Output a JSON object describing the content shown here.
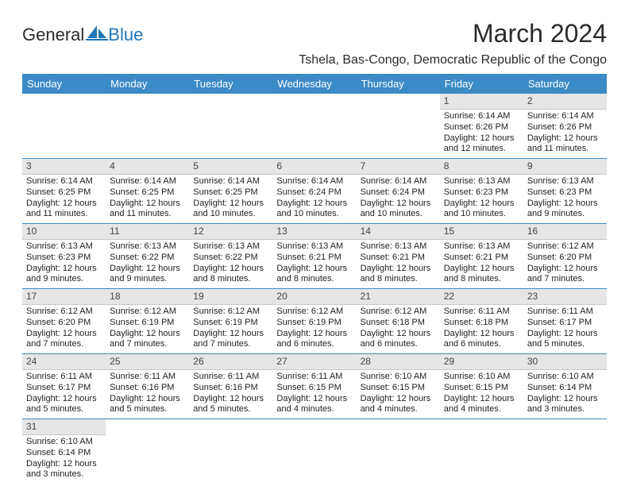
{
  "brand": {
    "name1": "General",
    "name2": "Blue"
  },
  "title": "March 2024",
  "location": "Tshela, Bas-Congo, Democratic Republic of the Congo",
  "colors": {
    "header_bg": "#3b8bc6",
    "header_text": "#ffffff",
    "daynum_bg": "#e6e6e6",
    "row_divider": "#3b8bc6",
    "logo_blue": "#2176b8"
  },
  "weekdays": [
    "Sunday",
    "Monday",
    "Tuesday",
    "Wednesday",
    "Thursday",
    "Friday",
    "Saturday"
  ],
  "calendar": {
    "first_weekday_index": 5,
    "days_in_month": 31
  },
  "days": {
    "1": {
      "sunrise": "6:14 AM",
      "sunset": "6:26 PM",
      "daylight": "12 hours and 12 minutes."
    },
    "2": {
      "sunrise": "6:14 AM",
      "sunset": "6:26 PM",
      "daylight": "12 hours and 11 minutes."
    },
    "3": {
      "sunrise": "6:14 AM",
      "sunset": "6:25 PM",
      "daylight": "12 hours and 11 minutes."
    },
    "4": {
      "sunrise": "6:14 AM",
      "sunset": "6:25 PM",
      "daylight": "12 hours and 11 minutes."
    },
    "5": {
      "sunrise": "6:14 AM",
      "sunset": "6:25 PM",
      "daylight": "12 hours and 10 minutes."
    },
    "6": {
      "sunrise": "6:14 AM",
      "sunset": "6:24 PM",
      "daylight": "12 hours and 10 minutes."
    },
    "7": {
      "sunrise": "6:14 AM",
      "sunset": "6:24 PM",
      "daylight": "12 hours and 10 minutes."
    },
    "8": {
      "sunrise": "6:13 AM",
      "sunset": "6:23 PM",
      "daylight": "12 hours and 10 minutes."
    },
    "9": {
      "sunrise": "6:13 AM",
      "sunset": "6:23 PM",
      "daylight": "12 hours and 9 minutes."
    },
    "10": {
      "sunrise": "6:13 AM",
      "sunset": "6:23 PM",
      "daylight": "12 hours and 9 minutes."
    },
    "11": {
      "sunrise": "6:13 AM",
      "sunset": "6:22 PM",
      "daylight": "12 hours and 9 minutes."
    },
    "12": {
      "sunrise": "6:13 AM",
      "sunset": "6:22 PM",
      "daylight": "12 hours and 8 minutes."
    },
    "13": {
      "sunrise": "6:13 AM",
      "sunset": "6:21 PM",
      "daylight": "12 hours and 8 minutes."
    },
    "14": {
      "sunrise": "6:13 AM",
      "sunset": "6:21 PM",
      "daylight": "12 hours and 8 minutes."
    },
    "15": {
      "sunrise": "6:13 AM",
      "sunset": "6:21 PM",
      "daylight": "12 hours and 8 minutes."
    },
    "16": {
      "sunrise": "6:12 AM",
      "sunset": "6:20 PM",
      "daylight": "12 hours and 7 minutes."
    },
    "17": {
      "sunrise": "6:12 AM",
      "sunset": "6:20 PM",
      "daylight": "12 hours and 7 minutes."
    },
    "18": {
      "sunrise": "6:12 AM",
      "sunset": "6:19 PM",
      "daylight": "12 hours and 7 minutes."
    },
    "19": {
      "sunrise": "6:12 AM",
      "sunset": "6:19 PM",
      "daylight": "12 hours and 7 minutes."
    },
    "20": {
      "sunrise": "6:12 AM",
      "sunset": "6:19 PM",
      "daylight": "12 hours and 6 minutes."
    },
    "21": {
      "sunrise": "6:12 AM",
      "sunset": "6:18 PM",
      "daylight": "12 hours and 6 minutes."
    },
    "22": {
      "sunrise": "6:11 AM",
      "sunset": "6:18 PM",
      "daylight": "12 hours and 6 minutes."
    },
    "23": {
      "sunrise": "6:11 AM",
      "sunset": "6:17 PM",
      "daylight": "12 hours and 5 minutes."
    },
    "24": {
      "sunrise": "6:11 AM",
      "sunset": "6:17 PM",
      "daylight": "12 hours and 5 minutes."
    },
    "25": {
      "sunrise": "6:11 AM",
      "sunset": "6:16 PM",
      "daylight": "12 hours and 5 minutes."
    },
    "26": {
      "sunrise": "6:11 AM",
      "sunset": "6:16 PM",
      "daylight": "12 hours and 5 minutes."
    },
    "27": {
      "sunrise": "6:11 AM",
      "sunset": "6:15 PM",
      "daylight": "12 hours and 4 minutes."
    },
    "28": {
      "sunrise": "6:10 AM",
      "sunset": "6:15 PM",
      "daylight": "12 hours and 4 minutes."
    },
    "29": {
      "sunrise": "6:10 AM",
      "sunset": "6:15 PM",
      "daylight": "12 hours and 4 minutes."
    },
    "30": {
      "sunrise": "6:10 AM",
      "sunset": "6:14 PM",
      "daylight": "12 hours and 3 minutes."
    },
    "31": {
      "sunrise": "6:10 AM",
      "sunset": "6:14 PM",
      "daylight": "12 hours and 3 minutes."
    }
  },
  "labels": {
    "sunrise": "Sunrise:",
    "sunset": "Sunset:",
    "daylight": "Daylight:"
  }
}
